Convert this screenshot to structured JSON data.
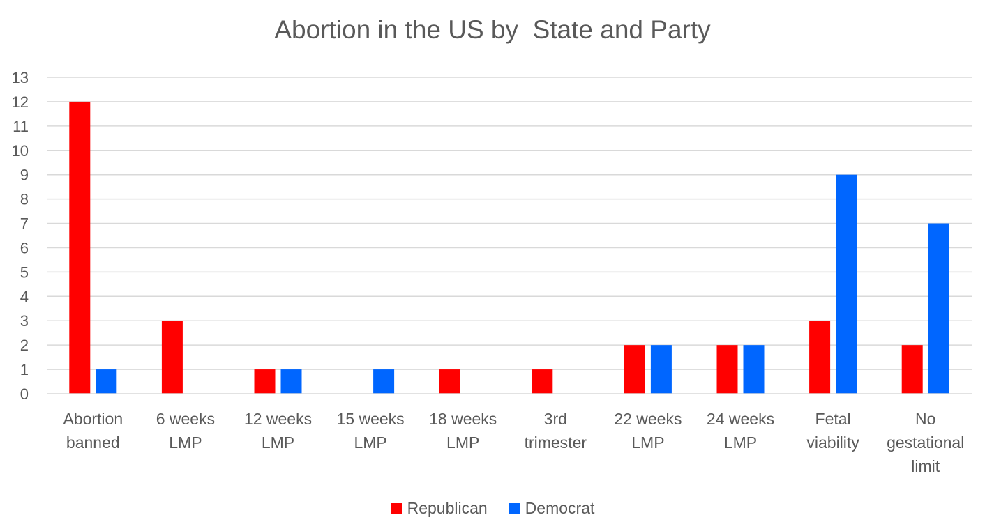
{
  "chart_data": {
    "type": "bar",
    "title": "Abortion in the US by  State and Party",
    "categories": [
      [
        "Abortion",
        "banned"
      ],
      [
        "6 weeks",
        "LMP"
      ],
      [
        "12 weeks",
        "LMP"
      ],
      [
        "15 weeks",
        "LMP"
      ],
      [
        "18 weeks",
        "LMP"
      ],
      [
        "3rd",
        "trimester"
      ],
      [
        "22 weeks",
        "LMP"
      ],
      [
        "24 weeks",
        "LMP"
      ],
      [
        "Fetal",
        "viability"
      ],
      [
        "No",
        "gestational",
        "limit"
      ]
    ],
    "series": [
      {
        "name": "Republican",
        "color": "#ff0000",
        "values": [
          12,
          3,
          1,
          0,
          1,
          1,
          2,
          2,
          3,
          2
        ]
      },
      {
        "name": "Democrat",
        "color": "#0066ff",
        "values": [
          1,
          0,
          1,
          1,
          0,
          0,
          2,
          2,
          9,
          7
        ]
      }
    ],
    "ylim": [
      0,
      13
    ],
    "yticks": [
      0,
      1,
      2,
      3,
      4,
      5,
      6,
      7,
      8,
      9,
      10,
      11,
      12,
      13
    ],
    "grid": true,
    "legend_position": "bottom"
  }
}
